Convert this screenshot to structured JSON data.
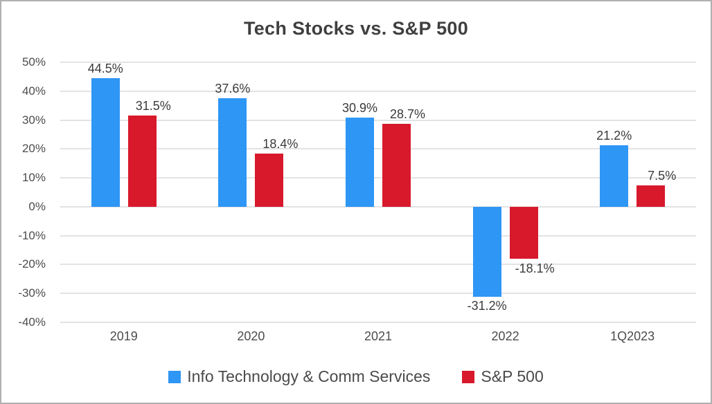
{
  "frame": {
    "background": "#ffffff",
    "border_color": "#b0b0b0"
  },
  "chart_data": {
    "type": "bar",
    "title": "Tech Stocks vs. S&P 500",
    "categories": [
      "2019",
      "2020",
      "2021",
      "2022",
      "1Q2023"
    ],
    "series": [
      {
        "name": "Info Technology & Comm Services",
        "color": "#2E96F5",
        "values": [
          44.5,
          37.6,
          30.9,
          -31.2,
          21.2
        ],
        "data_labels": [
          "44.5%",
          "37.6%",
          "30.9%",
          "-31.2%",
          "21.2%"
        ]
      },
      {
        "name": "S&P 500",
        "color": "#D8192C",
        "values": [
          31.5,
          18.4,
          28.7,
          -18.1,
          7.5
        ],
        "data_labels": [
          "31.5%",
          "18.4%",
          "28.7%",
          "-18.1%",
          "7.5%"
        ]
      }
    ],
    "ylim": [
      -40,
      50
    ],
    "ytick_step": 10,
    "ytick_labels": [
      "50%",
      "40%",
      "30%",
      "20%",
      "10%",
      "0%",
      "-10%",
      "-20%",
      "-30%",
      "-40%"
    ],
    "grid": true,
    "gridline_color": "#e3e3e3",
    "legend_position": "bottom",
    "axis_label_color": "#4c4c4c",
    "data_label_color": "#3a3a3a",
    "title_color": "#3f3f3f"
  }
}
